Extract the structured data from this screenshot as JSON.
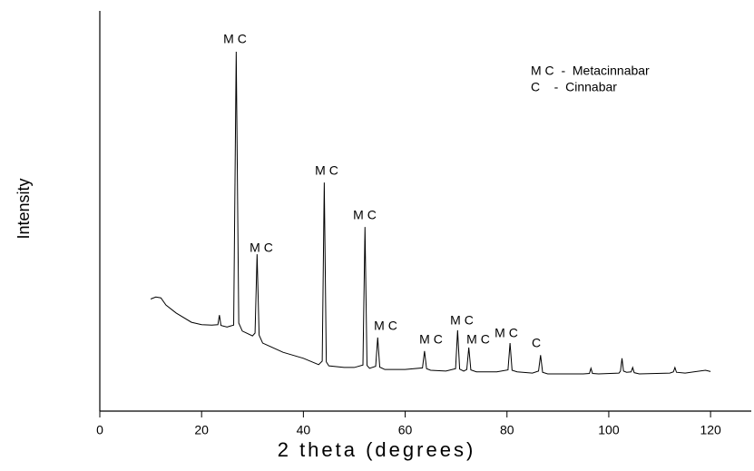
{
  "chart_data": {
    "type": "line",
    "x_label": "2 theta (degrees)",
    "y_label": "Intensity",
    "xlim": [
      0,
      128
    ],
    "xticks": [
      0,
      20,
      40,
      60,
      80,
      100,
      120
    ],
    "ylim": [
      0,
      100
    ],
    "color": "#000000",
    "x": [
      10,
      11,
      12,
      13,
      15,
      18,
      20,
      22,
      23.2,
      23.5,
      23.8,
      25,
      26.3,
      26.8,
      27.3,
      28,
      30,
      30.5,
      30.9,
      31.3,
      32,
      36,
      40,
      43,
      43.7,
      44.1,
      44.5,
      45,
      48,
      50,
      51.7,
      52.1,
      52.5,
      53,
      54.2,
      54.6,
      55,
      56,
      60,
      63.4,
      63.8,
      64.2,
      65,
      68,
      69.9,
      70.3,
      70.7,
      71.5,
      72.1,
      72.5,
      72.9,
      74,
      78,
      80.2,
      80.6,
      81,
      82,
      85,
      86.2,
      86.6,
      87,
      88,
      95,
      96.2,
      96.5,
      96.8,
      98,
      102,
      102.3,
      102.6,
      102.9,
      103.5,
      104.4,
      104.7,
      105,
      106,
      112,
      112.7,
      113,
      113.3,
      115,
      119,
      120
    ],
    "values": [
      28,
      28.5,
      28.3,
      26.5,
      24.5,
      22.2,
      21.6,
      21.5,
      21.6,
      24,
      21.4,
      21,
      21.5,
      89.8,
      22,
      20,
      18.8,
      19.5,
      39.2,
      19,
      17,
      14.7,
      13.2,
      11.6,
      12.5,
      57.1,
      12.3,
      11.3,
      10.9,
      10.9,
      11.5,
      46,
      11.4,
      10.7,
      11.2,
      18.4,
      11,
      10.4,
      10.4,
      10.8,
      15,
      10.6,
      10.2,
      10,
      10.6,
      20.2,
      10.5,
      10,
      10.4,
      15.9,
      10.3,
      9.8,
      9.8,
      10.3,
      17,
      10.2,
      9.8,
      9.5,
      10,
      14,
      9.7,
      9.3,
      9.3,
      9.4,
      10.7,
      9.4,
      9.3,
      9.5,
      10,
      13.2,
      10,
      9.7,
      9.8,
      10.9,
      9.6,
      9.3,
      9.5,
      9.8,
      10.9,
      9.7,
      9.5,
      10.2,
      9.9
    ],
    "annotations": [
      "M C",
      "M C",
      "M C",
      "M C",
      "M C",
      "M C",
      "M C",
      "M C",
      "M C",
      "C"
    ],
    "legend_lines": [
      "M C  -  Metacinnabar",
      "C    -  Cinnabar"
    ]
  }
}
